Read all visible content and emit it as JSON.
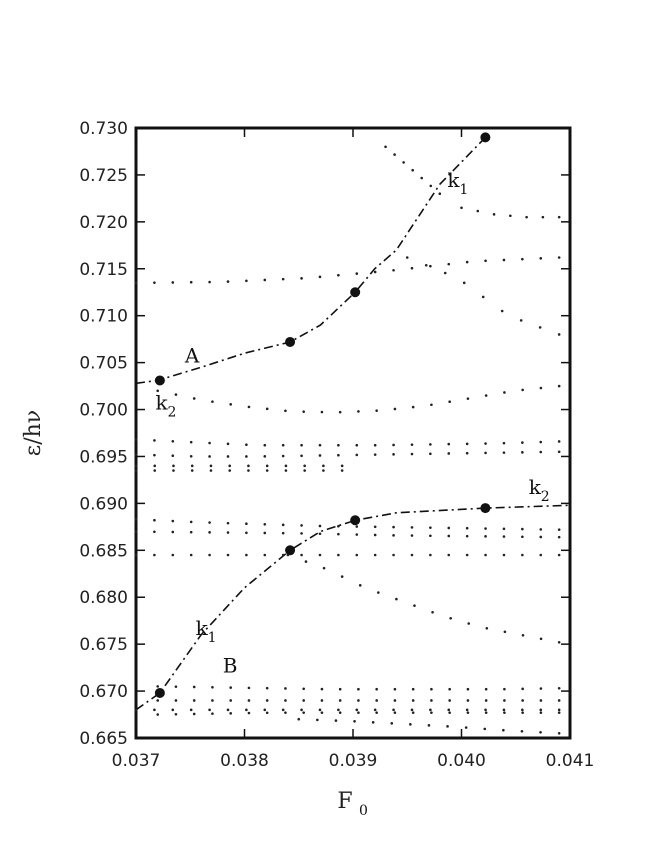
{
  "chart_data": {
    "type": "scatter",
    "title": "",
    "xlabel": "F",
    "xlabel_sub": "0",
    "ylabel": "ε/hν",
    "xlim": [
      0.037,
      0.041
    ],
    "ylim": [
      0.665,
      0.73
    ],
    "x_ticks": [
      0.037,
      0.038,
      0.039,
      0.04,
      0.041
    ],
    "x_tick_labels": [
      "0.037",
      "0.038",
      "0.039",
      "0.040",
      "0.041"
    ],
    "y_ticks": [
      0.665,
      0.67,
      0.675,
      0.68,
      0.685,
      0.69,
      0.695,
      0.7,
      0.705,
      0.71,
      0.715,
      0.72,
      0.725,
      0.73
    ],
    "y_tick_labels": [
      "0.665",
      "0.670",
      "0.675",
      "0.680",
      "0.685",
      "0.690",
      "0.695",
      "0.700",
      "0.705",
      "0.710",
      "0.715",
      "0.720",
      "0.725",
      "0.730"
    ],
    "grid": false,
    "series": [
      {
        "kind": "curve",
        "style": "dash-dot",
        "points": [
          [
            0.037,
            0.7028
          ],
          [
            0.0372,
            0.7031
          ],
          [
            0.0376,
            0.7045
          ],
          [
            0.038,
            0.706
          ],
          [
            0.03842,
            0.7072
          ],
          [
            0.0387,
            0.709
          ],
          [
            0.03902,
            0.7125
          ],
          [
            0.0392,
            0.715
          ],
          [
            0.0394,
            0.717
          ],
          [
            0.0398,
            0.724
          ],
          [
            0.04022,
            0.729
          ]
        ]
      },
      {
        "kind": "curve",
        "style": "dash-dot",
        "points": [
          [
            0.037,
            0.668
          ],
          [
            0.03722,
            0.6698
          ],
          [
            0.0376,
            0.676
          ],
          [
            0.038,
            0.681
          ],
          [
            0.03842,
            0.685
          ],
          [
            0.0387,
            0.687
          ],
          [
            0.03902,
            0.6882
          ],
          [
            0.0394,
            0.689
          ],
          [
            0.04022,
            0.6895
          ],
          [
            0.041,
            0.6898
          ]
        ]
      },
      {
        "kind": "markers",
        "points": [
          [
            0.03722,
            0.7031
          ],
          [
            0.03842,
            0.7072
          ],
          [
            0.03902,
            0.7125
          ],
          [
            0.04022,
            0.729
          ],
          [
            0.03722,
            0.6698
          ],
          [
            0.03842,
            0.685
          ],
          [
            0.03902,
            0.6882
          ],
          [
            0.04022,
            0.6895
          ]
        ]
      },
      {
        "kind": "dots",
        "note": "dotted quasienergy branches",
        "rows": [
          {
            "x_start": 0.037,
            "x_end": 0.0409,
            "y": [
              0.7135,
              0.7136,
              0.714,
              0.7148,
              0.7158,
              0.7162
            ]
          },
          {
            "x_start": 0.0395,
            "x_end": 0.0409,
            "y": [
              0.7162,
              0.714,
              0.71,
              0.708
            ]
          },
          {
            "x_start": 0.04,
            "x_end": 0.0409,
            "y": [
              0.7215,
              0.7208,
              0.7205,
              0.7205
            ]
          },
          {
            "x_start": 0.0393,
            "x_end": 0.0398,
            "y": [
              0.728,
              0.7255,
              0.723
            ]
          },
          {
            "x_start": 0.0372,
            "x_end": 0.0409,
            "y": [
              0.702,
              0.701,
              0.7003,
              0.6998,
              0.6997,
              0.6999,
              0.7004,
              0.7012,
              0.702,
              0.7025
            ]
          },
          {
            "x_start": 0.037,
            "x_end": 0.0409,
            "y": [
              0.6968,
              0.6965,
              0.6962,
              0.6962,
              0.6962,
              0.6963,
              0.6964,
              0.6966
            ]
          },
          {
            "x_start": 0.037,
            "x_end": 0.0409,
            "y": [
              0.6952,
              0.695,
              0.695,
              0.6951,
              0.6952,
              0.6953,
              0.6954,
              0.6955
            ]
          },
          {
            "x_start": 0.037,
            "x_end": 0.0389,
            "y": [
              0.694,
              0.694,
              0.694,
              0.694
            ]
          },
          {
            "x_start": 0.037,
            "x_end": 0.0389,
            "y": [
              0.6935,
              0.6935,
              0.6935
            ]
          },
          {
            "x_start": 0.037,
            "x_end": 0.0409,
            "y": [
              0.6883,
              0.688,
              0.6878,
              0.6876,
              0.6875,
              0.6874,
              0.6873,
              0.6872
            ]
          },
          {
            "x_start": 0.037,
            "x_end": 0.0409,
            "y": [
              0.687,
              0.6869,
              0.6868,
              0.6866,
              0.6865,
              0.6864
            ]
          },
          {
            "x_start": 0.037,
            "x_end": 0.0409,
            "y": [
              0.6845,
              0.6845,
              0.6845,
              0.6845,
              0.6845,
              0.6845,
              0.6845,
              0.6845
            ]
          },
          {
            "x_start": 0.0384,
            "x_end": 0.0409,
            "y": [
              0.6845,
              0.683,
              0.681,
              0.6795,
              0.678,
              0.6768,
              0.676,
              0.6752
            ]
          },
          {
            "x_start": 0.0372,
            "x_end": 0.0409,
            "y": [
              0.6705,
              0.6704,
              0.6703,
              0.6702,
              0.6702,
              0.6702,
              0.6702,
              0.6703
            ]
          },
          {
            "x_start": 0.0372,
            "x_end": 0.0409,
            "y": [
              0.669,
              0.669,
              0.669,
              0.669,
              0.669,
              0.669,
              0.669,
              0.669
            ]
          },
          {
            "x_start": 0.037,
            "x_end": 0.0409,
            "y": [
              0.668,
              0.668,
              0.668,
              0.668,
              0.668,
              0.668,
              0.668,
              0.668
            ]
          },
          {
            "x_start": 0.0372,
            "x_end": 0.0409,
            "y": [
              0.6675,
              0.6676,
              0.6677,
              0.6677,
              0.6677,
              0.6677,
              0.6677,
              0.6677
            ]
          },
          {
            "x_start": 0.0385,
            "x_end": 0.0409,
            "y": [
              0.667,
              0.6668,
              0.6665,
              0.6662,
              0.6658,
              0.6655
            ]
          }
        ]
      }
    ],
    "annotations": [
      {
        "text": "A",
        "sub": "",
        "x": 0.03745,
        "y": 0.705
      },
      {
        "text": "k",
        "sub": "2",
        "x": 0.03718,
        "y": 0.7
      },
      {
        "text": "k",
        "sub": "1",
        "x": 0.03987,
        "y": 0.7237
      },
      {
        "text": "k",
        "sub": "2",
        "x": 0.04062,
        "y": 0.691
      },
      {
        "text": "k",
        "sub": "1",
        "x": 0.03755,
        "y": 0.676
      },
      {
        "text": "B",
        "sub": "",
        "x": 0.0378,
        "y": 0.672
      }
    ]
  }
}
